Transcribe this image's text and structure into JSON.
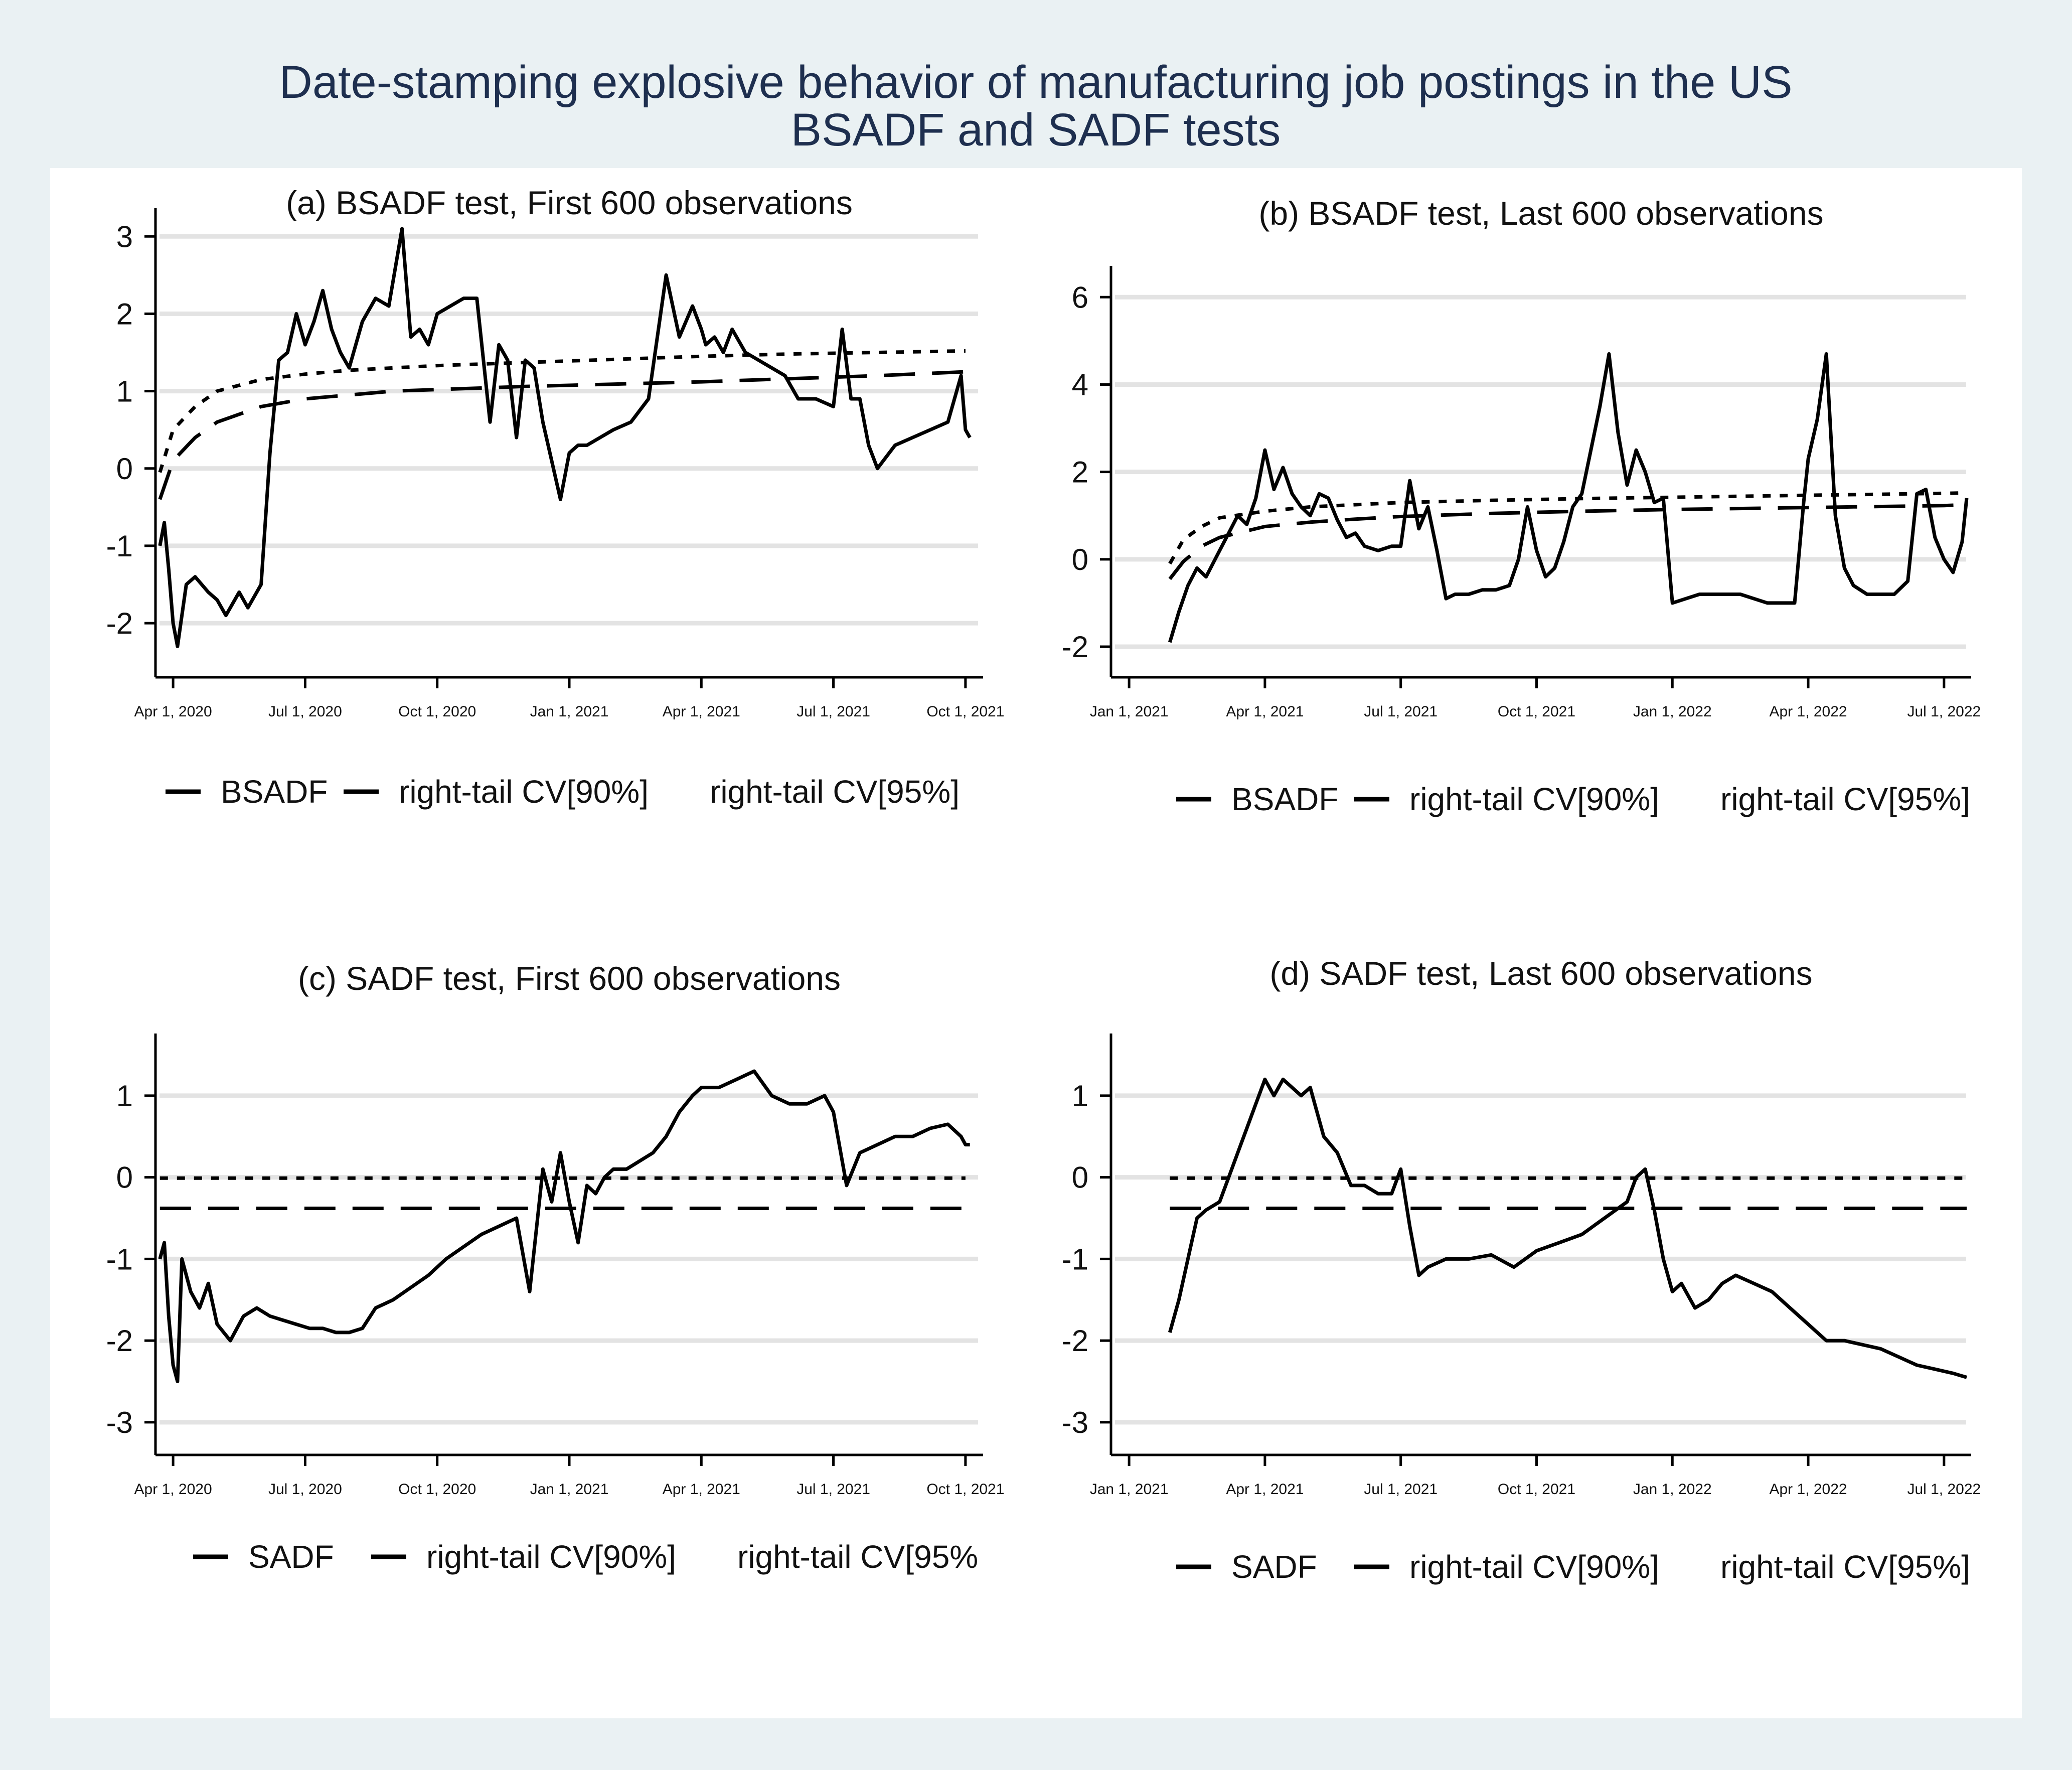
{
  "figure": {
    "title_line1": "Date-stamping explosive behavior of manufacturing job postings in the US",
    "title_line2": "BSADF and SADF tests"
  },
  "colors": {
    "outer_bg": "#eaf1f3",
    "inner_bg": "#ffffff",
    "title": "#1e2f4f",
    "line": "#000000",
    "grid": "#e3e3e3"
  },
  "chart_data": [
    {
      "id": "a",
      "type": "line",
      "title": "(a) BSADF test, First 600 observations",
      "ylim": [
        -2.7,
        3.3
      ],
      "yticks": [
        -2,
        -1,
        0,
        1,
        2,
        3
      ],
      "xlim": [
        -0.4,
        18.4
      ],
      "xticks": [
        {
          "x": 0,
          "label": "Apr 1, 2020"
        },
        {
          "x": 3,
          "label": "Jul 1, 2020"
        },
        {
          "x": 6,
          "label": "Oct 1, 2020"
        },
        {
          "x": 9,
          "label": "Jan 1, 2021"
        },
        {
          "x": 12,
          "label": "Apr 1, 2021"
        },
        {
          "x": 15,
          "label": "Jul 1, 2021"
        },
        {
          "x": 18,
          "label": "Oct 1, 2021"
        }
      ],
      "legend": [
        "BSADF",
        "right-tail CV[90%]",
        "right-tail CV[95%]"
      ],
      "series": [
        {
          "name": "BSADF",
          "style": "solid",
          "x": [
            -0.3,
            -0.2,
            -0.1,
            0,
            0.1,
            0.3,
            0.5,
            0.8,
            1.0,
            1.2,
            1.5,
            1.7,
            2.0,
            2.2,
            2.4,
            2.6,
            2.8,
            3.0,
            3.2,
            3.4,
            3.6,
            3.8,
            4.0,
            4.3,
            4.6,
            4.9,
            5.2,
            5.4,
            5.6,
            5.8,
            6.0,
            6.3,
            6.6,
            6.9,
            7.2,
            7.4,
            7.6,
            7.8,
            8.0,
            8.2,
            8.4,
            8.6,
            8.8,
            9.0,
            9.2,
            9.4,
            9.7,
            10.0,
            10.4,
            10.8,
            11.2,
            11.5,
            11.8,
            12.0,
            12.1,
            12.3,
            12.5,
            12.7,
            13.0,
            13.3,
            13.6,
            13.9,
            14.2,
            14.6,
            15.0,
            15.2,
            15.4,
            15.6,
            15.8,
            16.0,
            16.4,
            16.8,
            17.2,
            17.6,
            17.9,
            18.0,
            18.1
          ],
          "y": [
            -1.0,
            -0.7,
            -1.3,
            -2.0,
            -2.3,
            -1.5,
            -1.4,
            -1.6,
            -1.7,
            -1.9,
            -1.6,
            -1.8,
            -1.5,
            0.2,
            1.4,
            1.5,
            2.0,
            1.6,
            1.9,
            2.3,
            1.8,
            1.5,
            1.3,
            1.9,
            2.2,
            2.1,
            3.1,
            1.7,
            1.8,
            1.6,
            2.0,
            2.1,
            2.2,
            2.2,
            0.6,
            1.6,
            1.4,
            0.4,
            1.4,
            1.3,
            0.6,
            0.1,
            -0.4,
            0.2,
            0.3,
            0.3,
            0.4,
            0.5,
            0.6,
            0.9,
            2.5,
            1.7,
            2.1,
            1.8,
            1.6,
            1.7,
            1.5,
            1.8,
            1.5,
            1.4,
            1.3,
            1.2,
            0.9,
            0.9,
            0.8,
            1.8,
            0.9,
            0.9,
            0.3,
            0.0,
            0.3,
            0.4,
            0.5,
            0.6,
            1.2,
            0.5,
            0.4
          ]
        },
        {
          "name": "right-tail CV[90%]",
          "style": "long-dash",
          "x": [
            -0.3,
            0,
            0.5,
            1,
            2,
            3,
            4,
            5,
            6,
            8,
            10,
            12,
            14,
            16,
            18
          ],
          "y": [
            -0.4,
            0.1,
            0.4,
            0.6,
            0.8,
            0.9,
            0.95,
            1.0,
            1.02,
            1.06,
            1.09,
            1.12,
            1.16,
            1.2,
            1.25
          ]
        },
        {
          "name": "right-tail CV[95%]",
          "style": "short-dash",
          "x": [
            -0.3,
            0,
            0.5,
            1,
            2,
            3,
            4,
            5,
            6,
            8,
            10,
            12,
            14,
            16,
            18
          ],
          "y": [
            -0.05,
            0.5,
            0.8,
            1.0,
            1.15,
            1.22,
            1.27,
            1.3,
            1.33,
            1.37,
            1.41,
            1.45,
            1.48,
            1.5,
            1.52
          ]
        }
      ]
    },
    {
      "id": "b",
      "type": "line",
      "title": "(b) BSADF test, Last 600 observations",
      "ylim": [
        -2.7,
        6.6
      ],
      "yticks": [
        -2,
        0,
        2,
        4,
        6
      ],
      "xlim": [
        -0.4,
        18.6
      ],
      "xticks": [
        {
          "x": 0,
          "label": "Jan 1, 2021"
        },
        {
          "x": 3,
          "label": "Apr 1, 2021"
        },
        {
          "x": 6,
          "label": "Jul 1, 2021"
        },
        {
          "x": 9,
          "label": "Oct 1, 2021"
        },
        {
          "x": 12,
          "label": "Jan 1, 2022"
        },
        {
          "x": 15,
          "label": "Apr 1, 2022"
        },
        {
          "x": 18,
          "label": "Jul 1, 2022"
        }
      ],
      "legend": [
        "BSADF",
        "right-tail CV[90%]",
        "right-tail CV[95%]"
      ],
      "series": [
        {
          "name": "BSADF",
          "style": "solid",
          "x": [
            0.9,
            1.1,
            1.3,
            1.5,
            1.7,
            2.0,
            2.2,
            2.4,
            2.6,
            2.8,
            3.0,
            3.2,
            3.4,
            3.6,
            3.8,
            4.0,
            4.2,
            4.4,
            4.6,
            4.8,
            5.0,
            5.2,
            5.5,
            5.8,
            6.0,
            6.2,
            6.4,
            6.6,
            6.8,
            7.0,
            7.2,
            7.5,
            7.8,
            8.1,
            8.4,
            8.6,
            8.8,
            9.0,
            9.2,
            9.4,
            9.6,
            9.8,
            10.0,
            10.2,
            10.4,
            10.6,
            10.8,
            11.0,
            11.2,
            11.4,
            11.6,
            11.8,
            12.0,
            12.3,
            12.6,
            12.9,
            13.2,
            13.5,
            13.8,
            14.1,
            14.4,
            14.7,
            14.9,
            15.0,
            15.2,
            15.4,
            15.6,
            15.8,
            16.0,
            16.3,
            16.6,
            16.9,
            17.2,
            17.4,
            17.6,
            17.8,
            18.0,
            18.2,
            18.4,
            18.5
          ],
          "y": [
            -1.9,
            -1.2,
            -0.6,
            -0.2,
            -0.4,
            0.2,
            0.6,
            1.0,
            0.8,
            1.4,
            2.5,
            1.6,
            2.1,
            1.5,
            1.2,
            1.0,
            1.5,
            1.4,
            0.9,
            0.5,
            0.6,
            0.3,
            0.2,
            0.3,
            0.3,
            1.8,
            0.7,
            1.2,
            0.2,
            -0.9,
            -0.8,
            -0.8,
            -0.7,
            -0.7,
            -0.6,
            0.0,
            1.2,
            0.2,
            -0.4,
            -0.2,
            0.4,
            1.2,
            1.5,
            2.5,
            3.5,
            4.7,
            2.9,
            1.7,
            2.5,
            2.0,
            1.3,
            1.4,
            -1.0,
            -0.9,
            -0.8,
            -0.8,
            -0.8,
            -0.8,
            -0.9,
            -1.0,
            -1.0,
            -1.0,
            1.3,
            2.3,
            3.2,
            4.7,
            1.0,
            -0.2,
            -0.6,
            -0.8,
            -0.8,
            -0.8,
            -0.5,
            1.5,
            1.6,
            0.5,
            0.0,
            -0.3,
            0.4,
            1.4
          ]
        },
        {
          "name": "right-tail CV[90%]",
          "style": "long-dash",
          "x": [
            0.9,
            1.2,
            1.6,
            2,
            3,
            4,
            5,
            6,
            8,
            10,
            12,
            14,
            16,
            18,
            18.5
          ],
          "y": [
            -0.45,
            -0.05,
            0.3,
            0.5,
            0.75,
            0.85,
            0.92,
            0.98,
            1.05,
            1.1,
            1.14,
            1.17,
            1.2,
            1.23,
            1.25
          ]
        },
        {
          "name": "right-tail CV[95%]",
          "style": "short-dash",
          "x": [
            0.9,
            1.2,
            1.6,
            2,
            3,
            4,
            5,
            6,
            8,
            10,
            12,
            14,
            16,
            18,
            18.5
          ],
          "y": [
            -0.1,
            0.45,
            0.75,
            0.95,
            1.1,
            1.2,
            1.25,
            1.3,
            1.35,
            1.39,
            1.42,
            1.45,
            1.48,
            1.51,
            1.52
          ]
        }
      ]
    },
    {
      "id": "c",
      "type": "line",
      "title": "(c) SADF test, First 600 observations",
      "ylim": [
        -3.4,
        1.7
      ],
      "yticks": [
        -3,
        -2,
        -1,
        0,
        1
      ],
      "xlim": [
        -0.4,
        18.4
      ],
      "xticks": [
        {
          "x": 0,
          "label": "Apr 1, 2020"
        },
        {
          "x": 3,
          "label": "Jul 1, 2020"
        },
        {
          "x": 6,
          "label": "Oct 1, 2020"
        },
        {
          "x": 9,
          "label": "Jan 1, 2021"
        },
        {
          "x": 12,
          "label": "Apr 1, 2021"
        },
        {
          "x": 15,
          "label": "Jul 1, 2021"
        },
        {
          "x": 18,
          "label": "Oct 1, 2021"
        }
      ],
      "legend": [
        "SADF",
        "right-tail CV[90%]",
        "right-tail CV[95%"
      ],
      "series": [
        {
          "name": "SADF",
          "style": "solid",
          "x": [
            -0.3,
            -0.2,
            -0.1,
            0,
            0.1,
            0.2,
            0.4,
            0.6,
            0.8,
            1.0,
            1.3,
            1.6,
            1.9,
            2.2,
            2.5,
            2.8,
            3.1,
            3.4,
            3.7,
            4.0,
            4.3,
            4.6,
            5.0,
            5.4,
            5.8,
            6.2,
            6.6,
            7.0,
            7.4,
            7.8,
            8.1,
            8.4,
            8.6,
            8.8,
            9.0,
            9.2,
            9.4,
            9.6,
            9.8,
            10.0,
            10.3,
            10.6,
            10.9,
            11.2,
            11.5,
            11.8,
            12.0,
            12.4,
            12.8,
            13.2,
            13.6,
            14.0,
            14.4,
            14.8,
            15.0,
            15.3,
            15.6,
            16.0,
            16.4,
            16.8,
            17.2,
            17.6,
            17.9,
            18.0,
            18.1
          ],
          "y": [
            -1.0,
            -0.8,
            -1.7,
            -2.3,
            -2.5,
            -1.0,
            -1.4,
            -1.6,
            -1.3,
            -1.8,
            -2.0,
            -1.7,
            -1.6,
            -1.7,
            -1.75,
            -1.8,
            -1.85,
            -1.85,
            -1.9,
            -1.9,
            -1.85,
            -1.6,
            -1.5,
            -1.35,
            -1.2,
            -1.0,
            -0.85,
            -0.7,
            -0.6,
            -0.5,
            -1.4,
            0.1,
            -0.3,
            0.3,
            -0.3,
            -0.8,
            -0.1,
            -0.2,
            0.0,
            0.1,
            0.1,
            0.2,
            0.3,
            0.5,
            0.8,
            1.0,
            1.1,
            1.1,
            1.2,
            1.3,
            1.0,
            0.9,
            0.9,
            1.0,
            0.8,
            -0.1,
            0.3,
            0.4,
            0.5,
            0.5,
            0.6,
            0.65,
            0.5,
            0.4,
            0.4
          ]
        },
        {
          "name": "right-tail CV[90%]",
          "style": "long-dash",
          "x": [
            -0.3,
            18.0
          ],
          "y": [
            -0.38,
            -0.38
          ]
        },
        {
          "name": "right-tail CV[95%]",
          "style": "short-dash",
          "x": [
            -0.3,
            18.0
          ],
          "y": [
            -0.01,
            -0.01
          ]
        }
      ]
    },
    {
      "id": "d",
      "type": "line",
      "title": "(d) SADF test, Last 600 observations",
      "ylim": [
        -3.4,
        1.7
      ],
      "yticks": [
        -3,
        -2,
        -1,
        0,
        1
      ],
      "xlim": [
        -0.4,
        18.6
      ],
      "xticks": [
        {
          "x": 0,
          "label": "Jan 1, 2021"
        },
        {
          "x": 3,
          "label": "Apr 1, 2021"
        },
        {
          "x": 6,
          "label": "Jul 1, 2021"
        },
        {
          "x": 9,
          "label": "Oct 1, 2021"
        },
        {
          "x": 12,
          "label": "Jan 1, 2022"
        },
        {
          "x": 15,
          "label": "Apr 1, 2022"
        },
        {
          "x": 18,
          "label": "Jul 1, 2022"
        }
      ],
      "legend": [
        "SADF",
        "right-tail CV[90%]",
        "right-tail CV[95%]"
      ],
      "series": [
        {
          "name": "SADF",
          "style": "solid",
          "x": [
            0.9,
            1.1,
            1.3,
            1.5,
            1.7,
            2.0,
            2.2,
            2.4,
            2.6,
            2.8,
            3.0,
            3.2,
            3.4,
            3.6,
            3.8,
            4.0,
            4.3,
            4.6,
            4.9,
            5.2,
            5.5,
            5.8,
            6.0,
            6.2,
            6.4,
            6.6,
            7.0,
            7.5,
            8.0,
            8.5,
            9.0,
            9.5,
            10.0,
            10.5,
            11.0,
            11.2,
            11.4,
            11.6,
            11.8,
            12.0,
            12.2,
            12.5,
            12.8,
            13.1,
            13.4,
            13.8,
            14.2,
            14.6,
            15.0,
            15.4,
            15.8,
            16.2,
            16.6,
            17.0,
            17.4,
            17.8,
            18.2,
            18.5
          ],
          "y": [
            -1.9,
            -1.5,
            -1.0,
            -0.5,
            -0.4,
            -0.3,
            0.0,
            0.3,
            0.6,
            0.9,
            1.2,
            1.0,
            1.2,
            1.1,
            1.0,
            1.1,
            0.5,
            0.3,
            -0.1,
            -0.1,
            -0.2,
            -0.2,
            0.1,
            -0.6,
            -1.2,
            -1.1,
            -1.0,
            -1.0,
            -0.95,
            -1.1,
            -0.9,
            -0.8,
            -0.7,
            -0.5,
            -0.3,
            0.0,
            0.1,
            -0.4,
            -1.0,
            -1.4,
            -1.3,
            -1.6,
            -1.5,
            -1.3,
            -1.2,
            -1.3,
            -1.4,
            -1.6,
            -1.8,
            -2.0,
            -2.0,
            -2.05,
            -2.1,
            -2.2,
            -2.3,
            -2.35,
            -2.4,
            -2.45
          ]
        },
        {
          "name": "right-tail CV[90%]",
          "style": "long-dash",
          "x": [
            0.9,
            18.5
          ],
          "y": [
            -0.38,
            -0.38
          ]
        },
        {
          "name": "right-tail CV[95%]",
          "style": "short-dash",
          "x": [
            0.9,
            18.5
          ],
          "y": [
            -0.01,
            -0.01
          ]
        }
      ]
    }
  ]
}
